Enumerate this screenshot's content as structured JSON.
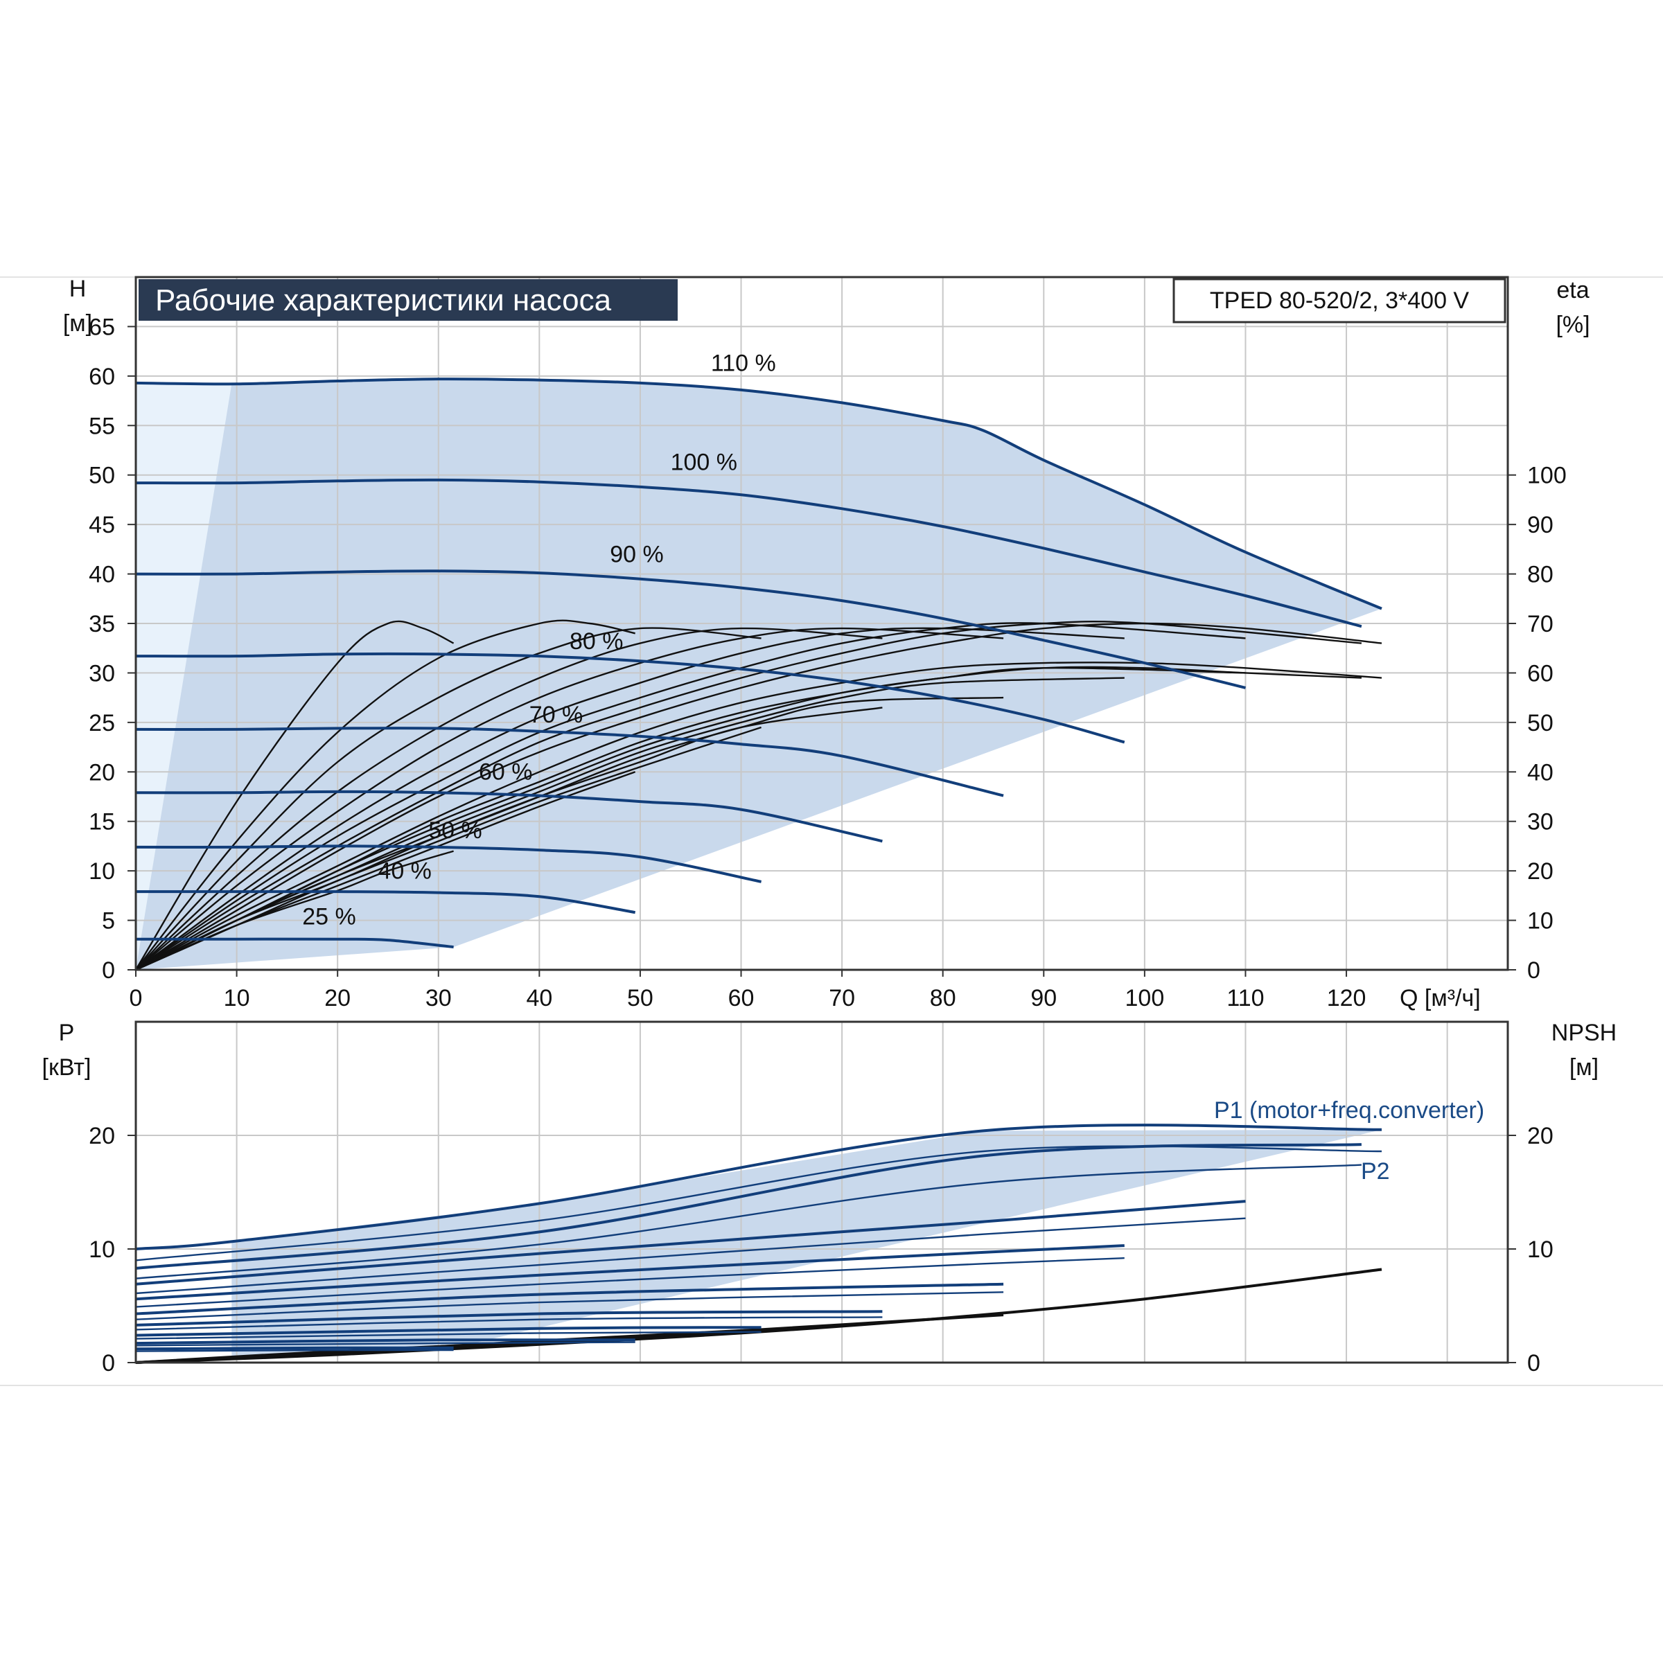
{
  "chart_title": "Рабочие характеристики насоса",
  "model": "TPED 80-520/2, 3*400 V",
  "colors": {
    "curve": "#123e7a",
    "eta": "#111111",
    "area": "#c9d9ec",
    "area_light": "#e8f2fb",
    "grid": "#c8c8c8",
    "title_bg": "#2a3a52"
  },
  "chart_data": [
    {
      "type": "line",
      "name": "head",
      "ylabel": "H",
      "yunit": "[м]",
      "y2label": "eta",
      "y2unit": "[%]",
      "xlabel": "Q [м³/ч]",
      "xlim": [
        0,
        136
      ],
      "ylim": [
        0,
        70
      ],
      "y2lim": [
        0,
        140
      ],
      "x_ticks": [
        "0",
        "10",
        "20",
        "30",
        "40",
        "50",
        "60",
        "70",
        "80",
        "90",
        "100",
        "110",
        "120"
      ],
      "y_ticks": [
        "0",
        "5",
        "10",
        "15",
        "20",
        "25",
        "30",
        "35",
        "40",
        "45",
        "50",
        "55",
        "60",
        "65"
      ],
      "y2_ticks": [
        "0",
        "10",
        "20",
        "30",
        "40",
        "50",
        "60",
        "70",
        "80",
        "90",
        "100"
      ],
      "series": [
        {
          "name": "110 %",
          "x": [
            0,
            10,
            20,
            30,
            40,
            50,
            60,
            70,
            80,
            84,
            90,
            100,
            110,
            123.5
          ],
          "y": [
            59.3,
            59.2,
            59.5,
            59.7,
            59.6,
            59.3,
            58.6,
            57.3,
            55.5,
            54.5,
            51.5,
            47.0,
            42.2,
            36.5
          ]
        },
        {
          "name": "100 %",
          "x": [
            0,
            10,
            20,
            30,
            40,
            50,
            60,
            70,
            80,
            90,
            100,
            110,
            121.5
          ],
          "y": [
            49.2,
            49.2,
            49.4,
            49.5,
            49.3,
            48.8,
            48.0,
            46.6,
            44.8,
            42.6,
            40.2,
            37.8,
            34.7
          ]
        },
        {
          "name": "90 %",
          "x": [
            0,
            10,
            20,
            30,
            40,
            50,
            60,
            70,
            80,
            90,
            100,
            110
          ],
          "y": [
            40.0,
            40.0,
            40.2,
            40.3,
            40.1,
            39.5,
            38.6,
            37.3,
            35.5,
            33.3,
            31.0,
            28.5
          ]
        },
        {
          "name": "80 %",
          "x": [
            0,
            10,
            20,
            30,
            40,
            50,
            60,
            70,
            80,
            90,
            98
          ],
          "y": [
            31.7,
            31.7,
            31.9,
            31.9,
            31.7,
            31.2,
            30.4,
            29.2,
            27.5,
            25.3,
            23.0
          ]
        },
        {
          "name": "70 %",
          "x": [
            0,
            10,
            20,
            30,
            40,
            50,
            60,
            70,
            86
          ],
          "y": [
            24.3,
            24.3,
            24.4,
            24.4,
            24.1,
            23.6,
            22.8,
            21.6,
            17.6
          ]
        },
        {
          "name": "60 %",
          "x": [
            0,
            10,
            20,
            30,
            40,
            50,
            60,
            74
          ],
          "y": [
            17.9,
            17.9,
            18.0,
            17.9,
            17.6,
            17.0,
            16.2,
            13.0
          ]
        },
        {
          "name": "50 %",
          "x": [
            0,
            10,
            20,
            30,
            40,
            50,
            62
          ],
          "y": [
            12.4,
            12.4,
            12.5,
            12.4,
            12.1,
            11.4,
            8.9
          ]
        },
        {
          "name": "40 %",
          "x": [
            0,
            10,
            20,
            30,
            40,
            49.5
          ],
          "y": [
            7.9,
            7.9,
            7.9,
            7.8,
            7.4,
            5.8
          ]
        },
        {
          "name": "25 %",
          "x": [
            0,
            10,
            20,
            25,
            31.5
          ],
          "y": [
            3.1,
            3.1,
            3.1,
            3.0,
            2.3
          ]
        }
      ],
      "envelope": {
        "x": [
          9.5,
          20,
          30,
          40,
          50,
          60,
          70,
          80,
          84,
          90,
          100,
          110,
          123.5,
          31.5,
          0,
          0,
          9.5
        ],
        "y": [
          59.2,
          59.5,
          59.7,
          59.6,
          59.3,
          58.6,
          57.3,
          55.5,
          54.5,
          51.5,
          47.0,
          42.2,
          36.5,
          2.3,
          0,
          59.3,
          59.2
        ]
      },
      "eta_series": [
        {
          "x": [
            0,
            10,
            20,
            25,
            28.5,
            31.5
          ],
          "y": [
            0,
            34,
            62,
            70,
            69,
            66
          ]
        },
        {
          "x": [
            0,
            10,
            20,
            30,
            40,
            45,
            49.5
          ],
          "y": [
            0,
            26,
            48,
            63,
            70,
            70,
            68
          ]
        },
        {
          "x": [
            0,
            10,
            20,
            30,
            40,
            50,
            62
          ],
          "y": [
            0,
            22,
            42,
            55,
            64,
            69,
            67
          ]
        },
        {
          "x": [
            0,
            10,
            20,
            30,
            40,
            50,
            60,
            74
          ],
          "y": [
            0,
            19,
            36,
            49,
            59,
            66,
            69,
            67
          ]
        },
        {
          "x": [
            0,
            10,
            20,
            30,
            40,
            50,
            60,
            70,
            86
          ],
          "y": [
            0,
            17,
            32,
            45,
            55,
            62,
            67,
            69,
            67
          ]
        },
        {
          "x": [
            0,
            10,
            20,
            30,
            40,
            50,
            60,
            70,
            80,
            98
          ],
          "y": [
            0,
            15,
            29,
            41,
            51,
            58,
            64,
            68,
            69,
            67
          ]
        },
        {
          "x": [
            0,
            10,
            20,
            30,
            40,
            50,
            60,
            70,
            80,
            90,
            110
          ],
          "y": [
            0,
            14,
            27,
            38,
            48,
            55,
            61,
            66,
            69,
            70,
            67
          ]
        },
        {
          "x": [
            0,
            10,
            20,
            30,
            40,
            50,
            60,
            70,
            80,
            90,
            100,
            121.5
          ],
          "y": [
            0,
            13,
            25,
            36,
            46,
            53,
            59,
            64,
            68,
            70,
            70,
            66
          ]
        },
        {
          "x": [
            0,
            10,
            20,
            30,
            40,
            50,
            60,
            70,
            80,
            90,
            100,
            110,
            123.5
          ],
          "y": [
            0,
            12,
            24,
            35,
            44,
            51,
            57,
            62,
            66,
            69,
            70,
            69,
            66
          ]
        },
        {
          "x": [
            0,
            10,
            20,
            30,
            40,
            50,
            60,
            70,
            80,
            90,
            100,
            110,
            123.5
          ],
          "y": [
            0,
            11,
            21,
            31,
            40,
            48,
            54,
            58,
            61,
            62,
            62,
            61,
            59
          ]
        },
        {
          "x": [
            0,
            10,
            20,
            30,
            40,
            50,
            60,
            70,
            80,
            90,
            100,
            110,
            121.5
          ],
          "y": [
            0,
            10,
            20,
            30,
            38,
            46,
            52,
            56,
            59,
            61,
            61,
            60,
            59
          ]
        },
        {
          "x": [
            0,
            10,
            20,
            30,
            40,
            50,
            60,
            70,
            80,
            90,
            110
          ],
          "y": [
            0,
            10,
            20,
            29,
            37,
            45,
            51,
            56,
            59,
            61,
            60
          ]
        },
        {
          "x": [
            0,
            10,
            20,
            30,
            40,
            50,
            60,
            70,
            80,
            98
          ],
          "y": [
            0,
            10,
            19,
            28,
            36,
            44,
            50,
            55,
            58,
            59
          ]
        },
        {
          "x": [
            0,
            10,
            20,
            30,
            40,
            50,
            60,
            70,
            86
          ],
          "y": [
            0,
            10,
            19,
            27,
            35,
            43,
            49,
            54,
            55
          ]
        },
        {
          "x": [
            0,
            10,
            20,
            30,
            40,
            50,
            60,
            74
          ],
          "y": [
            0,
            10,
            18,
            27,
            35,
            42,
            49,
            53
          ]
        },
        {
          "x": [
            0,
            10,
            20,
            30,
            40,
            50,
            62
          ],
          "y": [
            0,
            9,
            18,
            26,
            34,
            41,
            49
          ]
        },
        {
          "x": [
            0,
            10,
            20,
            30,
            40,
            49.5
          ],
          "y": [
            0,
            9,
            17,
            25,
            33,
            40
          ]
        },
        {
          "x": [
            0,
            10,
            20,
            25,
            31.5
          ],
          "y": [
            0,
            9,
            16,
            20,
            24
          ]
        }
      ]
    },
    {
      "type": "line",
      "name": "power",
      "ylabel": "P",
      "yunit": "[кВт]",
      "y2label": "NPSH",
      "y2unit": "[м]",
      "xlim": [
        0,
        136
      ],
      "ylim": [
        0,
        30
      ],
      "y_ticks": [
        "0",
        "10",
        "20"
      ],
      "y2_ticks": [
        "0",
        "10",
        "20"
      ],
      "series_labels": [
        "P1 (motor+freq.converter)",
        "P2"
      ],
      "p1_series": [
        {
          "x": [
            0,
            10,
            40,
            84,
            123.5
          ],
          "y": [
            10.0,
            10.7,
            14.0,
            20.4,
            20.5
          ]
        },
        {
          "x": [
            0,
            40,
            84,
            121.5
          ],
          "y": [
            8.3,
            11.5,
            18.2,
            19.2
          ]
        },
        {
          "x": [
            0,
            40,
            84,
            110
          ],
          "y": [
            6.9,
            9.6,
            12.4,
            14.2
          ]
        },
        {
          "x": [
            0,
            40,
            84,
            98
          ],
          "y": [
            5.6,
            7.7,
            9.7,
            10.3
          ]
        },
        {
          "x": [
            0,
            40,
            86
          ],
          "y": [
            4.3,
            6.0,
            6.9
          ]
        },
        {
          "x": [
            0,
            40,
            74
          ],
          "y": [
            3.3,
            4.3,
            4.5
          ]
        },
        {
          "x": [
            0,
            40,
            62
          ],
          "y": [
            2.4,
            3.0,
            3.1
          ]
        },
        {
          "x": [
            0,
            30,
            49.5
          ],
          "y": [
            1.7,
            2.0,
            2.0
          ]
        },
        {
          "x": [
            0,
            20,
            31.5
          ],
          "y": [
            1.2,
            1.3,
            1.3
          ]
        }
      ],
      "p2_series": [
        {
          "x": [
            0,
            40,
            84,
            123.5
          ],
          "y": [
            9.0,
            12.5,
            18.6,
            18.6
          ]
        },
        {
          "x": [
            0,
            40,
            84,
            121.5
          ],
          "y": [
            7.4,
            10.4,
            15.8,
            17.4
          ]
        },
        {
          "x": [
            0,
            40,
            84,
            110
          ],
          "y": [
            6.1,
            8.6,
            11.3,
            12.7
          ]
        },
        {
          "x": [
            0,
            40,
            84,
            98
          ],
          "y": [
            4.9,
            6.9,
            8.7,
            9.2
          ]
        },
        {
          "x": [
            0,
            40,
            86
          ],
          "y": [
            3.8,
            5.3,
            6.2
          ]
        },
        {
          "x": [
            0,
            40,
            74
          ],
          "y": [
            2.9,
            3.8,
            4.0
          ]
        },
        {
          "x": [
            0,
            40,
            62
          ],
          "y": [
            2.1,
            2.6,
            2.7
          ]
        },
        {
          "x": [
            0,
            30,
            49.5
          ],
          "y": [
            1.5,
            1.7,
            1.8
          ]
        },
        {
          "x": [
            0,
            20,
            31.5
          ],
          "y": [
            1.0,
            1.1,
            1.1
          ]
        }
      ],
      "npsh_series": [
        {
          "x": [
            0,
            20,
            40,
            60,
            80,
            100,
            123.5
          ],
          "y": [
            0,
            0.7,
            1.6,
            2.6,
            3.9,
            5.6,
            8.2
          ]
        },
        {
          "x": [
            0,
            20,
            40,
            60,
            86
          ],
          "y": [
            0,
            0.8,
            1.8,
            2.8,
            4.2
          ]
        },
        {
          "x": [
            0,
            20,
            40,
            62
          ],
          "y": [
            0,
            0.9,
            1.9,
            2.9
          ]
        },
        {
          "x": [
            0,
            20,
            40,
            49.5
          ],
          "y": [
            0,
            1.0,
            1.8,
            2.3
          ]
        }
      ],
      "envelope": {
        "x": [
          9.5,
          40,
          84,
          123.5,
          31.5,
          9.5
        ],
        "y": [
          10.7,
          14.0,
          20.4,
          20.5,
          1.3,
          0.5
        ]
      }
    }
  ],
  "curve_labels": [
    "110 %",
    "100 %",
    "90 %",
    "80 %",
    "70 %",
    "60 %",
    "50 %",
    "40 %",
    "25 %"
  ]
}
